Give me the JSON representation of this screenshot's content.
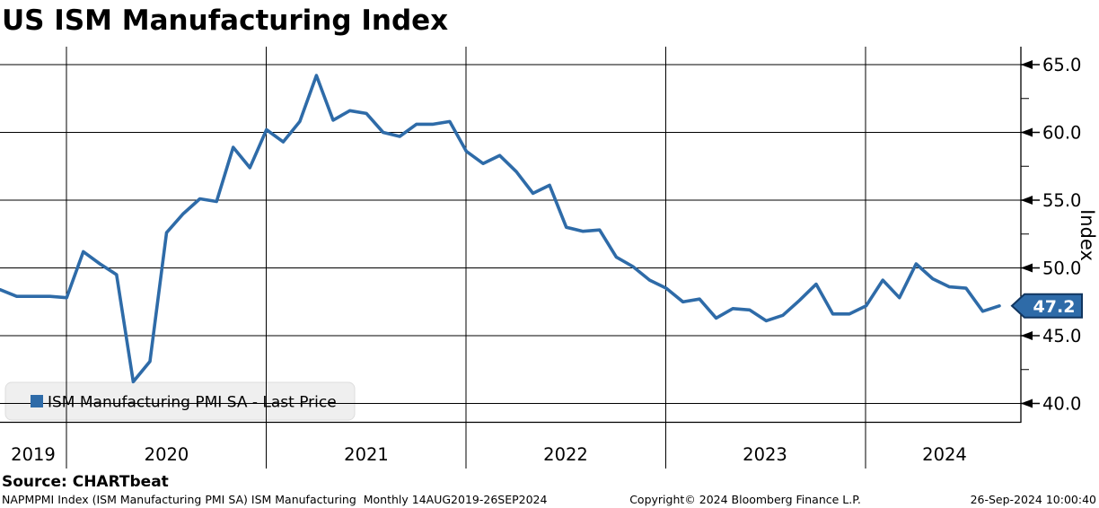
{
  "title": "US ISM Manufacturing Index",
  "legend": {
    "label": "ISM Manufacturing PMI SA - Last Price"
  },
  "y_axis": {
    "title": "Index",
    "ticks": [
      65,
      60,
      55,
      50,
      45,
      40
    ],
    "minor_ticks": [
      62.5,
      57.5,
      52.5,
      47.5,
      42.5
    ],
    "tick_labels": [
      "65.0",
      "60.0",
      "55.0",
      "50.0",
      "45.0",
      "40.0"
    ]
  },
  "x_axis": {
    "year_labels": [
      "2019",
      "2020",
      "2021",
      "2022",
      "2023",
      "2024"
    ]
  },
  "last_price_tag": {
    "value": "47.2"
  },
  "footer": {
    "source": "Source: CHARTbeat",
    "description": "NAPMPMI Index (ISM Manufacturing PMI SA) ISM Manufacturing  Monthly 14AUG2019-26SEP2024",
    "copyright": "Copyright© 2024 Bloomberg Finance L.P.",
    "timestamp": "26-Sep-2024 10:00:40"
  },
  "colors": {
    "series": "#2e6ba8",
    "tag_fill": "#2e6ba8",
    "tag_border": "#10355f",
    "tag_text": "#ffffff",
    "grid": "#000000",
    "legend_bg": "#efefef"
  },
  "chart_data": {
    "type": "line",
    "title": "US ISM Manufacturing Index",
    "ylabel": "Index",
    "ylim": [
      38.5,
      66.8
    ],
    "grid": true,
    "legend_position": "bottom-left",
    "x_start": "Aug-2019",
    "x_end": "Aug-2024",
    "frequency": "Monthly",
    "x_tick_labels": [
      "2019",
      "2020",
      "2021",
      "2022",
      "2023",
      "2024"
    ],
    "y_tick_labels": [
      "65.0",
      "60.0",
      "55.0",
      "50.0",
      "45.0",
      "40.0"
    ],
    "last_value": 47.2,
    "series": [
      {
        "name": "ISM Manufacturing PMI SA - Last Price",
        "color": "#2e6ba8",
        "values": [
          48.4,
          47.9,
          47.9,
          47.9,
          47.8,
          51.2,
          50.3,
          49.5,
          41.6,
          43.1,
          52.6,
          54.0,
          55.1,
          54.9,
          58.9,
          57.4,
          60.2,
          59.3,
          60.8,
          64.2,
          60.9,
          61.6,
          61.4,
          60.0,
          59.7,
          60.6,
          60.6,
          60.8,
          58.6,
          57.7,
          58.3,
          57.1,
          55.5,
          56.1,
          53.0,
          52.7,
          52.8,
          50.8,
          50.1,
          49.1,
          48.5,
          47.5,
          47.7,
          46.3,
          47.0,
          46.9,
          46.1,
          46.5,
          47.6,
          48.8,
          46.6,
          46.6,
          47.2,
          49.1,
          47.8,
          50.3,
          49.2,
          48.6,
          48.5,
          46.8,
          47.2
        ]
      }
    ]
  }
}
